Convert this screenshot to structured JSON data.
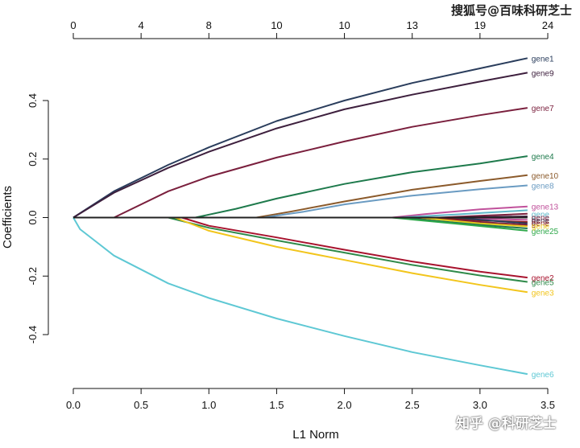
{
  "chart_data": {
    "type": "line",
    "title": "",
    "xlabel": "L1 Norm",
    "ylabel": "Coefficients",
    "xlim": [
      0,
      3.5
    ],
    "ylim": [
      -0.58,
      0.62
    ],
    "x_ticks": [
      0,
      0.5,
      1.0,
      1.5,
      2.0,
      2.5,
      3.0,
      3.5
    ],
    "x_tick_labels": [
      "0.0",
      "0.5",
      "1.0",
      "1.5",
      "2.0",
      "2.5",
      "3.0",
      "3.5"
    ],
    "y_ticks": [
      -0.4,
      -0.2,
      0.0,
      0.2,
      0.4
    ],
    "y_tick_labels": [
      "-0.4",
      "-0.2",
      "0.0",
      "0.2",
      "0.4"
    ],
    "top_axis": {
      "positions": [
        0,
        0.5,
        1.0,
        1.5,
        2.0,
        2.5,
        3.0,
        3.5
      ],
      "labels": [
        "0",
        "4",
        "8",
        "10",
        "10",
        "13",
        "19",
        "24"
      ]
    },
    "grid": false,
    "series": [
      {
        "name": "gene1",
        "color": "#2a3d5c",
        "points": [
          [
            0,
            0
          ],
          [
            0.3,
            0.09
          ],
          [
            0.7,
            0.18
          ],
          [
            1.0,
            0.24
          ],
          [
            1.5,
            0.33
          ],
          [
            2.0,
            0.4
          ],
          [
            2.5,
            0.46
          ],
          [
            3.0,
            0.51
          ],
          [
            3.35,
            0.545
          ]
        ]
      },
      {
        "name": "gene9",
        "color": "#3d1f3d",
        "points": [
          [
            0,
            0
          ],
          [
            0.3,
            0.085
          ],
          [
            0.7,
            0.17
          ],
          [
            1.0,
            0.225
          ],
          [
            1.5,
            0.305
          ],
          [
            2.0,
            0.37
          ],
          [
            2.5,
            0.42
          ],
          [
            3.0,
            0.465
          ],
          [
            3.35,
            0.495
          ]
        ]
      },
      {
        "name": "gene7",
        "color": "#7a1f3d",
        "points": [
          [
            0.3,
            0
          ],
          [
            0.7,
            0.09
          ],
          [
            1.0,
            0.14
          ],
          [
            1.5,
            0.205
          ],
          [
            2.0,
            0.26
          ],
          [
            2.5,
            0.31
          ],
          [
            3.0,
            0.35
          ],
          [
            3.35,
            0.375
          ]
        ]
      },
      {
        "name": "gene4",
        "color": "#1e7a4c",
        "points": [
          [
            0.9,
            0
          ],
          [
            1.2,
            0.03
          ],
          [
            1.5,
            0.065
          ],
          [
            2.0,
            0.115
          ],
          [
            2.5,
            0.155
          ],
          [
            3.0,
            0.185
          ],
          [
            3.35,
            0.21
          ]
        ]
      },
      {
        "name": "gene10",
        "color": "#8b5a2b",
        "points": [
          [
            1.35,
            0
          ],
          [
            1.6,
            0.02
          ],
          [
            2.0,
            0.055
          ],
          [
            2.5,
            0.095
          ],
          [
            3.0,
            0.125
          ],
          [
            3.35,
            0.145
          ]
        ]
      },
      {
        "name": "gene8",
        "color": "#6a9bc2",
        "points": [
          [
            1.4,
            0
          ],
          [
            1.7,
            0.02
          ],
          [
            2.0,
            0.045
          ],
          [
            2.5,
            0.075
          ],
          [
            3.0,
            0.097
          ],
          [
            3.35,
            0.11
          ]
        ]
      },
      {
        "name": "gene13",
        "color": "#c0519b",
        "points": [
          [
            2.35,
            0
          ],
          [
            2.6,
            0.012
          ],
          [
            3.0,
            0.028
          ],
          [
            3.35,
            0.038
          ]
        ]
      },
      {
        "name": "",
        "color": "#5fb8c9",
        "points": [
          [
            2.4,
            0
          ],
          [
            2.8,
            0.01
          ],
          [
            3.35,
            0.025
          ]
        ]
      },
      {
        "name": "",
        "color": "#7a1f3d",
        "points": [
          [
            2.7,
            0
          ],
          [
            3.0,
            0.006
          ],
          [
            3.35,
            0.013
          ]
        ]
      },
      {
        "name": "",
        "color": "#3d1f3d",
        "points": [
          [
            2.8,
            0
          ],
          [
            3.35,
            0.004
          ]
        ]
      },
      {
        "name": "",
        "color": "#c0519b",
        "points": [
          [
            2.7,
            0
          ],
          [
            3.35,
            -0.008
          ]
        ]
      },
      {
        "name": "",
        "color": "#8b1a1a",
        "points": [
          [
            2.6,
            0
          ],
          [
            3.0,
            -0.01
          ],
          [
            3.35,
            -0.015
          ]
        ]
      },
      {
        "name": "",
        "color": "#2a3d5c",
        "points": [
          [
            2.8,
            0
          ],
          [
            3.35,
            -0.02
          ]
        ]
      },
      {
        "name": "",
        "color": "#7a1f3d",
        "points": [
          [
            2.5,
            0
          ],
          [
            3.0,
            -0.015
          ],
          [
            3.35,
            -0.025
          ]
        ]
      },
      {
        "name": "",
        "color": "#e6c619",
        "points": [
          [
            2.55,
            0
          ],
          [
            3.0,
            -0.02
          ],
          [
            3.35,
            -0.03
          ]
        ]
      },
      {
        "name": "",
        "color": "#1e7a4c",
        "points": [
          [
            2.4,
            0
          ],
          [
            3.0,
            -0.025
          ],
          [
            3.35,
            -0.037
          ]
        ]
      },
      {
        "name": "gene25",
        "color": "#2ea84a",
        "points": [
          [
            2.35,
            0
          ],
          [
            2.8,
            -0.02
          ],
          [
            3.35,
            -0.045
          ]
        ]
      },
      {
        "name": "gene2",
        "color": "#a8132e",
        "points": [
          [
            0.8,
            0
          ],
          [
            1.0,
            -0.028
          ],
          [
            1.5,
            -0.068
          ],
          [
            2.0,
            -0.11
          ],
          [
            2.5,
            -0.15
          ],
          [
            3.0,
            -0.185
          ],
          [
            3.35,
            -0.205
          ]
        ]
      },
      {
        "name": "gene5",
        "color": "#2f8a4a",
        "points": [
          [
            0.7,
            0
          ],
          [
            1.0,
            -0.035
          ],
          [
            1.5,
            -0.078
          ],
          [
            2.0,
            -0.12
          ],
          [
            2.5,
            -0.162
          ],
          [
            3.0,
            -0.198
          ],
          [
            3.35,
            -0.22
          ]
        ]
      },
      {
        "name": "gene3",
        "color": "#f2c51c",
        "points": [
          [
            0.75,
            0
          ],
          [
            1.0,
            -0.045
          ],
          [
            1.5,
            -0.1
          ],
          [
            2.0,
            -0.145
          ],
          [
            2.5,
            -0.19
          ],
          [
            3.0,
            -0.23
          ],
          [
            3.35,
            -0.255
          ]
        ]
      },
      {
        "name": "gene6",
        "color": "#5ec8d4",
        "points": [
          [
            0,
            0
          ],
          [
            0.05,
            -0.04
          ],
          [
            0.3,
            -0.13
          ],
          [
            0.7,
            -0.225
          ],
          [
            1.0,
            -0.275
          ],
          [
            1.5,
            -0.345
          ],
          [
            2.0,
            -0.405
          ],
          [
            2.5,
            -0.46
          ],
          [
            3.0,
            -0.505
          ],
          [
            3.35,
            -0.535
          ]
        ]
      },
      {
        "name": "",
        "color": "#222222",
        "points": [
          [
            0,
            0
          ],
          [
            3.35,
            0
          ]
        ]
      }
    ],
    "extra_labels": [
      {
        "text": "gene",
        "y": 0.012,
        "color": "#5fb8c9"
      },
      {
        "text": "gene",
        "y": 0.002,
        "color": "#7a1f3d"
      },
      {
        "text": "gene",
        "y": -0.008,
        "color": "#3d1f3d"
      },
      {
        "text": "gene",
        "y": -0.018,
        "color": "#8b1a1a"
      },
      {
        "text": "gene",
        "y": -0.028,
        "color": "#e6c619"
      }
    ]
  },
  "watermark_top": "搜狐号@百味科研芝士",
  "watermark_bottom": "知乎 @科研芝士"
}
